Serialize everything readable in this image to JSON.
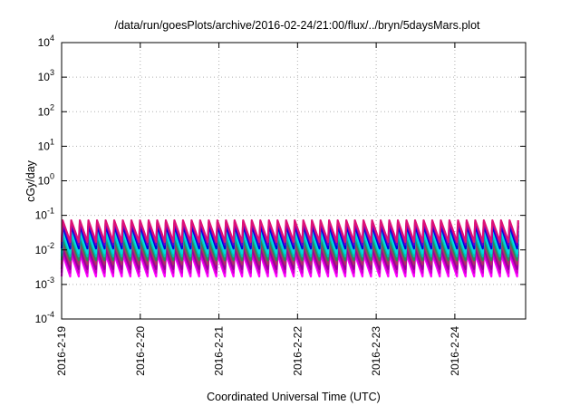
{
  "chart_data": {
    "type": "line",
    "title": "/data/run/goesPlots/archive/2016-02-24/21:00/flux/../bryn/5daysMars.plot",
    "xlabel": "Coordinated Universal Time (UTC)",
    "ylabel": "cGy/day",
    "x_range_days": [
      0,
      5.9
    ],
    "x_ticks": [
      {
        "day": 0,
        "label": "2016-2-19"
      },
      {
        "day": 1,
        "label": "2016-2-20"
      },
      {
        "day": 2,
        "label": "2016-2-21"
      },
      {
        "day": 3,
        "label": "2016-2-22"
      },
      {
        "day": 4,
        "label": "2016-2-23"
      },
      {
        "day": 5,
        "label": "2016-2-24"
      }
    ],
    "y_scale": "log",
    "ylim": [
      0.0001,
      10000
    ],
    "y_ticks": [
      {
        "exp": -4,
        "base": "10",
        "sup": "-4"
      },
      {
        "exp": -3,
        "base": "10",
        "sup": "-3"
      },
      {
        "exp": -2,
        "base": "10",
        "sup": "-2"
      },
      {
        "exp": -1,
        "base": "10",
        "sup": "-1"
      },
      {
        "exp": 0,
        "base": "10",
        "sup": "0"
      },
      {
        "exp": 1,
        "base": "10",
        "sup": "1"
      },
      {
        "exp": 2,
        "base": "10",
        "sup": "2"
      },
      {
        "exp": 3,
        "base": "10",
        "sup": "3"
      },
      {
        "exp": 4,
        "base": "10",
        "sup": "4"
      }
    ],
    "grid": true,
    "pulses_per_day": 9.15,
    "series": [
      {
        "color": "#ff00ff",
        "high": 0.0075,
        "low": 0.0017
      },
      {
        "color": "#cc00cc",
        "high": 0.009,
        "low": 0.0022
      },
      {
        "color": "#990099",
        "high": 0.011,
        "low": 0.0028
      },
      {
        "color": "#aa3366",
        "high": 0.015,
        "low": 0.0038
      },
      {
        "color": "#2e8b57",
        "high": 0.02,
        "low": 0.005
      },
      {
        "color": "#00bbbb",
        "high": 0.028,
        "low": 0.0065
      },
      {
        "color": "#00dddd",
        "high": 0.035,
        "low": 0.008
      },
      {
        "color": "#0000dd",
        "high": 0.05,
        "low": 0.011
      },
      {
        "color": "#6600cc",
        "high": 0.062,
        "low": 0.014
      },
      {
        "color": "#dd1177",
        "high": 0.072,
        "low": 0.017
      }
    ]
  }
}
